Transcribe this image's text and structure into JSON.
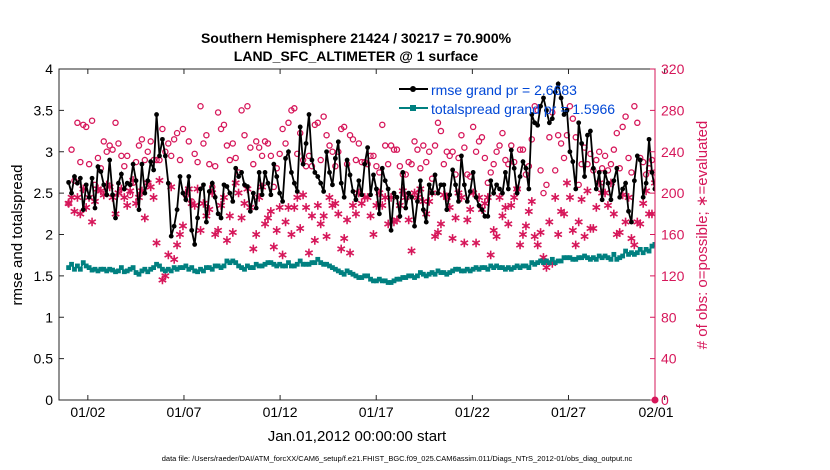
{
  "chart_data": {
    "type": "line",
    "title": "Southern Hemisphere 21424 / 30217 = 70.900%",
    "subtitle": "LAND_SFC_ALTIMETER @ 1 surface",
    "xlabel": "Jan.01,2012 00:00:00 start",
    "ylabel": "rmse and totalspread",
    "y2label": "# of obs: o=possible; ∗=evaluated",
    "footer": "data file: /Users/raeder/DAI/ATM_forcXX/CAM6_setup/f.e21.FHIST_BGC.f09_025.CAM6assim.011/Diags_NTrS_2012-01/obs_diag_output.nc",
    "xlim": [
      0.5,
      31.5
    ],
    "ylim": [
      0,
      4
    ],
    "y2lim": [
      0,
      320
    ],
    "x_ticks": [
      {
        "value": 2,
        "label": "01/02"
      },
      {
        "value": 7,
        "label": "01/07"
      },
      {
        "value": 12,
        "label": "01/12"
      },
      {
        "value": 17,
        "label": "01/17"
      },
      {
        "value": 22,
        "label": "01/22"
      },
      {
        "value": 27,
        "label": "01/27"
      },
      {
        "value": 32,
        "label": "02/01"
      }
    ],
    "y_ticks": [
      {
        "value": 0,
        "label": "0"
      },
      {
        "value": 0.5,
        "label": "0.5"
      },
      {
        "value": 1,
        "label": "1"
      },
      {
        "value": 1.5,
        "label": "1.5"
      },
      {
        "value": 2,
        "label": "2"
      },
      {
        "value": 2.5,
        "label": "2.5"
      },
      {
        "value": 3,
        "label": "3"
      },
      {
        "value": 3.5,
        "label": "3.5"
      },
      {
        "value": 4,
        "label": "4"
      }
    ],
    "y2_ticks": [
      {
        "value": 0,
        "label": "0"
      },
      {
        "value": 40,
        "label": "40"
      },
      {
        "value": 80,
        "label": "80"
      },
      {
        "value": 120,
        "label": "120"
      },
      {
        "value": 160,
        "label": "160"
      },
      {
        "value": 200,
        "label": "200"
      },
      {
        "value": 240,
        "label": "240"
      },
      {
        "value": 280,
        "label": "280"
      },
      {
        "value": 320,
        "label": "320"
      }
    ],
    "legend_position": "top-right",
    "colors": {
      "rmse": "#000000",
      "spread": "#008080",
      "obs": "#d6175a",
      "legend_text": "#0047d6"
    },
    "series": [
      {
        "name": "rmse grand pr = 2.6683",
        "axis": "left",
        "values": [
          2.63,
          2.5,
          2.7,
          2.62,
          2.68,
          2.3,
          2.6,
          2.45,
          2.68,
          2.32,
          2.82,
          2.76,
          2.6,
          2.48,
          2.9,
          2.48,
          2.2,
          2.62,
          2.73,
          2.55,
          2.62,
          2.6,
          2.85,
          2.65,
          2.3,
          2.85,
          2.5,
          2.65,
          2.88,
          2.78,
          3.45,
          2.95,
          3.15,
          2.95,
          2.62,
          1.98,
          2.1,
          2.3,
          2.7,
          2.5,
          2.42,
          2.7,
          2.05,
          1.88,
          2.2,
          2.55,
          2.6,
          2.15,
          2.52,
          2.62,
          2.45,
          2.25,
          2.2,
          2.6,
          2.58,
          2.5,
          2.4,
          2.8,
          2.7,
          2.75,
          2.6,
          2.58,
          2.28,
          2.5,
          2.32,
          2.75,
          2.48,
          2.75,
          2.62,
          2.48,
          2.85,
          2.7,
          2.5,
          2.4,
          2.92,
          3.0,
          2.75,
          2.62,
          2.52,
          3.3,
          2.85,
          3.1,
          3.45,
          2.9,
          2.75,
          2.7,
          2.62,
          2.52,
          3.0,
          2.75,
          2.6,
          2.92,
          3.12,
          2.62,
          2.45,
          2.9,
          2.72,
          2.52,
          2.42,
          2.65,
          2.48,
          2.85,
          3.05,
          2.48,
          2.72,
          2.55,
          2.25,
          2.8,
          2.65,
          2.55,
          2.05,
          2.5,
          2.45,
          2.22,
          2.75,
          2.32,
          2.5,
          2.45,
          2.1,
          2.4,
          2.65,
          2.3,
          2.15,
          2.6,
          2.5,
          2.72,
          2.5,
          2.6,
          2.6,
          2.3,
          2.48,
          2.78,
          2.6,
          2.4,
          2.95,
          2.6,
          2.4,
          2.52,
          2.75,
          2.45,
          2.35,
          2.3,
          2.22,
          2.22,
          2.65,
          2.5,
          2.6,
          2.55,
          2.5,
          2.75,
          2.55,
          3.02,
          2.8,
          2.5,
          2.7,
          2.88,
          2.8,
          2.55,
          3.45,
          3.35,
          3.32,
          3.55,
          3.65,
          3.5,
          3.35,
          3.4,
          3.72,
          3.82,
          3.65,
          3.45,
          3.5,
          3.0,
          2.88,
          2.55,
          3.35,
          3.1,
          2.7,
          3.2,
          3.25,
          2.8,
          2.55,
          2.75,
          2.42,
          2.75,
          2.62,
          2.42,
          2.65,
          2.8,
          2.45,
          2.55,
          2.62,
          2.28,
          2.15,
          2.65,
          2.95,
          2.9,
          2.45,
          2.62,
          3.15,
          2.75,
          2.55,
          2.45,
          2.4
        ]
      },
      {
        "name": "totalspread grand pr = 1.5966",
        "axis": "left",
        "values": [
          1.6,
          1.64,
          1.58,
          1.62,
          1.58,
          1.66,
          1.62,
          1.6,
          1.57,
          1.58,
          1.56,
          1.58,
          1.58,
          1.56,
          1.58,
          1.57,
          1.55,
          1.56,
          1.6,
          1.55,
          1.56,
          1.58,
          1.6,
          1.54,
          1.52,
          1.56,
          1.58,
          1.55,
          1.58,
          1.6,
          1.64,
          1.62,
          1.58,
          1.56,
          1.58,
          1.56,
          1.6,
          1.58,
          1.6,
          1.6,
          1.62,
          1.58,
          1.6,
          1.56,
          1.55,
          1.58,
          1.56,
          1.6,
          1.6,
          1.58,
          1.62,
          1.62,
          1.6,
          1.62,
          1.68,
          1.66,
          1.68,
          1.66,
          1.62,
          1.6,
          1.58,
          1.62,
          1.6,
          1.6,
          1.64,
          1.62,
          1.62,
          1.64,
          1.66,
          1.66,
          1.64,
          1.62,
          1.64,
          1.62,
          1.62,
          1.66,
          1.62,
          1.62,
          1.64,
          1.68,
          1.64,
          1.64,
          1.64,
          1.66,
          1.66,
          1.7,
          1.66,
          1.64,
          1.64,
          1.62,
          1.6,
          1.58,
          1.56,
          1.54,
          1.52,
          1.56,
          1.54,
          1.52,
          1.5,
          1.48,
          1.48,
          1.5,
          1.5,
          1.46,
          1.44,
          1.44,
          1.46,
          1.44,
          1.44,
          1.42,
          1.42,
          1.44,
          1.46,
          1.46,
          1.48,
          1.48,
          1.5,
          1.5,
          1.48,
          1.5,
          1.54,
          1.52,
          1.5,
          1.52,
          1.54,
          1.52,
          1.56,
          1.54,
          1.54,
          1.52,
          1.54,
          1.56,
          1.58,
          1.58,
          1.56,
          1.56,
          1.58,
          1.56,
          1.58,
          1.6,
          1.58,
          1.6,
          1.6,
          1.58,
          1.62,
          1.6,
          1.62,
          1.6,
          1.6,
          1.58,
          1.6,
          1.58,
          1.6,
          1.62,
          1.6,
          1.62,
          1.62,
          1.6,
          1.66,
          1.64,
          1.66,
          1.68,
          1.66,
          1.68,
          1.66,
          1.7,
          1.66,
          1.68,
          1.68,
          1.72,
          1.72,
          1.72,
          1.7,
          1.7,
          1.72,
          1.72,
          1.74,
          1.72,
          1.7,
          1.72,
          1.7,
          1.74,
          1.72,
          1.74,
          1.72,
          1.7,
          1.76,
          1.7,
          1.72,
          1.74,
          1.8,
          1.76,
          1.78,
          1.76,
          1.78,
          1.82,
          1.78,
          1.82,
          1.8,
          1.86,
          1.88,
          1.68,
          1.7,
          1.85,
          1.92,
          1.86,
          2.0,
          1.96,
          1.88,
          1.92,
          1.88,
          1.86,
          1.78
        ]
      },
      {
        "name": "# of obs possible",
        "axis": "right",
        "marker": "circle",
        "values": [
          190,
          242,
          212,
          268,
          230,
          266,
          264,
          228,
          270,
          208,
          234,
          224,
          250,
          240,
          246,
          242,
          268,
          248,
          236,
          226,
          236,
          198,
          210,
          230,
          246,
          252,
          232,
          240,
          250,
          232,
          232,
          232,
          262,
          240,
          248,
          236,
          252,
          258,
          232,
          262,
          198,
          250,
          192,
          238,
          230,
          284,
          248,
          256,
          228,
          206,
          226,
          278,
          262,
          266,
          246,
          232,
          248,
          234,
          220,
          280,
          256,
          284,
          244,
          228,
          250,
          244,
          236,
          250,
          248,
          236,
          206,
          224,
          238,
          262,
          248,
          268,
          280,
          282,
          238,
          258,
          232,
          226,
          236,
          226,
          266,
          268,
          232,
          274,
          256,
          246,
          240,
          226,
          240,
          262,
          264,
          228,
          256,
          252,
          232,
          248,
          230,
          230,
          228,
          236,
          236,
          226,
          220,
          266,
          246,
          228,
          246,
          242,
          242,
          226,
          218,
          218,
          230,
          228,
          250,
          242,
          224,
          246,
          230,
          240,
          214,
          246,
          268,
          260,
          228,
          240,
          236,
          240,
          218,
          234,
          256,
          244,
          218,
          216,
          264,
          240,
          250,
          254,
          234,
          210,
          220,
          228,
          240,
          246,
          258,
          232,
          228,
          246,
          230,
          204,
          242,
          242,
          218,
          226,
          252,
          284,
          280,
          222,
          200,
          208,
          254,
          278,
          222,
          256,
          248,
          234,
          256,
          284,
          272,
          254,
          208,
          228,
          244,
          228,
          238,
          222,
          232,
          240,
          224,
          236,
          222,
          228,
          242,
          258,
          224,
          264,
          274,
          234,
          220,
          284,
          268,
          234,
          230,
          218,
          224,
          232,
          220,
          282,
          286,
          274,
          256,
          240,
          286
        ]
      },
      {
        "name": "# of obs evaluated",
        "axis": "right",
        "marker": "asterisk",
        "values": [
          190,
          196,
          182,
          196,
          180,
          204,
          186,
          196,
          172,
          192,
          204,
          202,
          198,
          208,
          206,
          196,
          180,
          200,
          204,
          196,
          188,
          202,
          212,
          190,
          196,
          202,
          176,
          210,
          206,
          196,
          152,
          212,
          116,
          120,
          140,
          206,
          136,
          150,
          160,
          168,
          200,
          204,
          190,
          188,
          204,
          164,
          190,
          178,
          184,
          200,
          160,
          164,
          188,
          196,
          154,
          178,
          162,
          210,
          200,
          176,
          190,
          204,
          186,
          146,
          160,
          196,
          206,
          170,
          176,
          182,
          148,
          164,
          186,
          140,
          172,
          186,
          160,
          186,
          196,
          166,
          198,
          186,
          142,
          178,
          154,
          188,
          170,
          178,
          158,
          196,
          188,
          190,
          180,
          146,
          156,
          174,
          142,
          188,
          180,
          200,
          190,
          196,
          196,
          178,
          160,
          188,
          200,
          188,
          196,
          170,
          196,
          172,
          174,
          188,
          202,
          196,
          174,
          144,
          200,
          196,
          204,
          192,
          180,
          192,
          200,
          158,
          162,
          170,
          198,
          196,
          186,
          156,
          176,
          200,
          196,
          152,
          174,
          184,
          200,
          152,
          196,
          184,
          190,
          196,
          140,
          164,
          158,
          196,
          178,
          186,
          170,
          188,
          196,
          204,
          150,
          160,
          168,
          182,
          192,
          158,
          150,
          162,
          138,
          128,
          172,
          132,
          196,
          160,
          182,
          180,
          210,
          196,
          164,
          150,
          172,
          194,
          158,
          202,
          166,
          166,
          186,
          210,
          200,
          200,
          188,
          210,
          180,
          160,
          162,
          198,
          172,
          196,
          156,
          150,
          172,
          170,
          190,
          202,
          180,
          180,
          210,
          204,
          210,
          196,
          204,
          206,
          200
        ]
      }
    ]
  }
}
